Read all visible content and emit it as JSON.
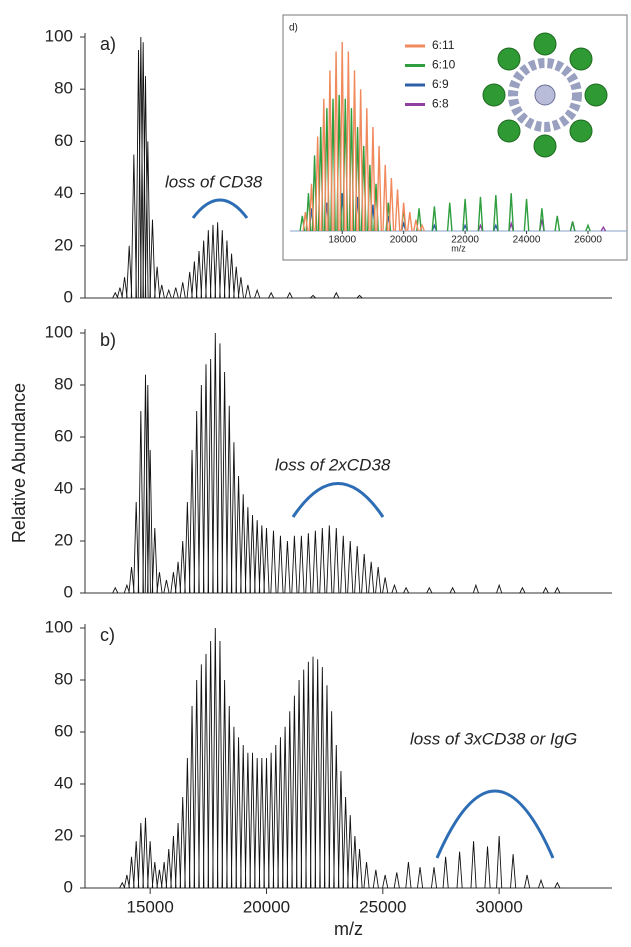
{
  "chart_data": [
    {
      "type": "spectrum",
      "label": "a)",
      "annotation": "loss of CD38",
      "color": "#111111",
      "x": [
        13500,
        13700,
        13900,
        14100,
        14300,
        14500,
        14600,
        14700,
        14800,
        14900,
        15100,
        15300,
        15500,
        15800,
        16100,
        16400,
        16700,
        16900,
        17100,
        17300,
        17500,
        17700,
        17900,
        18100,
        18300,
        18500,
        18700,
        18900,
        19200,
        19600,
        20200,
        21000,
        22000,
        23000,
        24000
      ],
      "values": [
        2,
        4,
        8,
        20,
        55,
        95,
        100,
        98,
        85,
        60,
        30,
        12,
        5,
        3,
        4,
        6,
        10,
        14,
        18,
        22,
        26,
        28,
        29,
        26,
        22,
        17,
        12,
        8,
        5,
        3,
        2,
        2,
        1,
        2,
        1
      ],
      "xlim": [
        12200,
        34850
      ],
      "ylim": [
        0,
        100
      ],
      "yticks": [
        0,
        20,
        40,
        60,
        80,
        100
      ]
    },
    {
      "type": "spectrum",
      "label": "b)",
      "annotation": "loss of 2xCD38",
      "y_label": "Relative Abundance",
      "color": "#111111",
      "x": [
        13500,
        14000,
        14200,
        14400,
        14600,
        14800,
        14900,
        15000,
        15200,
        15400,
        15700,
        16000,
        16200,
        16400,
        16600,
        16800,
        17000,
        17200,
        17400,
        17600,
        17800,
        18000,
        18200,
        18400,
        18600,
        18800,
        19000,
        19200,
        19400,
        19600,
        19800,
        20000,
        20300,
        20600,
        20900,
        21200,
        21500,
        21800,
        22100,
        22400,
        22700,
        23000,
        23300,
        23600,
        23900,
        24200,
        24500,
        24800,
        25100,
        25500,
        26000,
        27000,
        28000,
        29000,
        30000,
        31000,
        32000,
        32500
      ],
      "values": [
        2,
        3,
        10,
        35,
        70,
        84,
        80,
        55,
        25,
        8,
        5,
        8,
        12,
        20,
        35,
        55,
        70,
        80,
        88,
        90,
        100,
        96,
        85,
        72,
        58,
        45,
        38,
        33,
        30,
        28,
        26,
        25,
        24,
        22,
        20,
        22,
        22,
        23,
        24,
        25,
        26,
        25,
        22,
        20,
        18,
        15,
        12,
        10,
        6,
        3,
        2,
        2,
        2,
        3,
        3,
        2,
        2,
        2
      ],
      "xlim": [
        12200,
        34850
      ],
      "ylim": [
        0,
        100
      ],
      "yticks": [
        0,
        20,
        40,
        60,
        80,
        100
      ]
    },
    {
      "type": "spectrum",
      "label": "c)",
      "annotation": "loss of 3xCD38 or IgG",
      "x_label": "m/z",
      "color": "#111111",
      "x": [
        13800,
        14000,
        14200,
        14400,
        14600,
        14800,
        15000,
        15200,
        15400,
        15600,
        15800,
        16000,
        16200,
        16400,
        16600,
        16800,
        17000,
        17200,
        17400,
        17600,
        17800,
        18000,
        18200,
        18400,
        18600,
        18800,
        19000,
        19200,
        19400,
        19600,
        19800,
        20000,
        20200,
        20400,
        20600,
        20800,
        21000,
        21200,
        21400,
        21600,
        21800,
        22000,
        22200,
        22400,
        22600,
        22800,
        23000,
        23200,
        23400,
        23600,
        23800,
        24000,
        24300,
        24700,
        25100,
        25600,
        26100,
        26600,
        27200,
        27700,
        28300,
        28900,
        29500,
        30000,
        30600,
        31200,
        31800,
        32500
      ],
      "values": [
        2,
        5,
        12,
        18,
        25,
        27,
        18,
        10,
        7,
        10,
        15,
        20,
        25,
        35,
        50,
        70,
        80,
        86,
        90,
        95,
        100,
        95,
        80,
        70,
        62,
        58,
        55,
        52,
        52,
        50,
        50,
        50,
        52,
        55,
        58,
        62,
        68,
        74,
        80,
        84,
        87,
        89,
        88,
        85,
        78,
        68,
        55,
        45,
        35,
        28,
        20,
        15,
        10,
        7,
        5,
        6,
        10,
        8,
        8,
        12,
        14,
        18,
        16,
        20,
        13,
        5,
        3,
        2
      ],
      "xlim": [
        12200,
        34850
      ],
      "xticks": [
        15000,
        20000,
        25000,
        30000
      ],
      "ylim": [
        0,
        100
      ],
      "yticks": [
        0,
        20,
        40,
        60,
        80,
        100
      ]
    },
    {
      "type": "spectrum-inset",
      "label": "d)",
      "x_label": "m/z",
      "xlim": [
        16300,
        27270
      ],
      "xticks": [
        18000,
        20000,
        22000,
        24000,
        26000
      ],
      "ylim": [
        0,
        100
      ],
      "series": [
        {
          "name": "6:11",
          "color": "#f08a5d",
          "x": [
            16800,
            17000,
            17200,
            17400,
            17600,
            17800,
            18000,
            18200,
            18400,
            18600,
            18800,
            19000,
            19200,
            19400,
            19600,
            19800,
            20000,
            20200,
            20400,
            20600
          ],
          "values": [
            10,
            25,
            50,
            70,
            85,
            95,
            100,
            95,
            85,
            75,
            65,
            55,
            45,
            35,
            28,
            22,
            15,
            10,
            6,
            3
          ]
        },
        {
          "name": "6:10",
          "color": "#2e9e3e",
          "x": [
            16700,
            16900,
            17100,
            17300,
            17500,
            17700,
            17900,
            18100,
            18300,
            18500,
            18700,
            18900,
            19100,
            19500,
            20000,
            20500,
            21000,
            21500,
            22000,
            22500,
            23000,
            23500,
            24000,
            24500,
            25000,
            25500,
            26000
          ],
          "values": [
            8,
            20,
            40,
            55,
            65,
            70,
            72,
            70,
            65,
            55,
            45,
            35,
            25,
            15,
            12,
            12,
            13,
            15,
            17,
            18,
            19,
            20,
            17,
            12,
            8,
            5,
            3
          ]
        },
        {
          "name": "6:9",
          "color": "#2f5fa8",
          "x": [
            17000,
            17500,
            18000,
            18500,
            19000,
            19500,
            20000,
            21000,
            22000,
            23000
          ],
          "values": [
            12,
            15,
            20,
            18,
            14,
            8,
            4,
            3,
            3,
            3
          ]
        },
        {
          "name": "6:8",
          "color": "#8e3fa0",
          "x": [
            22500,
            23500,
            24500,
            25500,
            26500
          ],
          "values": [
            3,
            4,
            6,
            5,
            2
          ]
        }
      ]
    }
  ]
}
